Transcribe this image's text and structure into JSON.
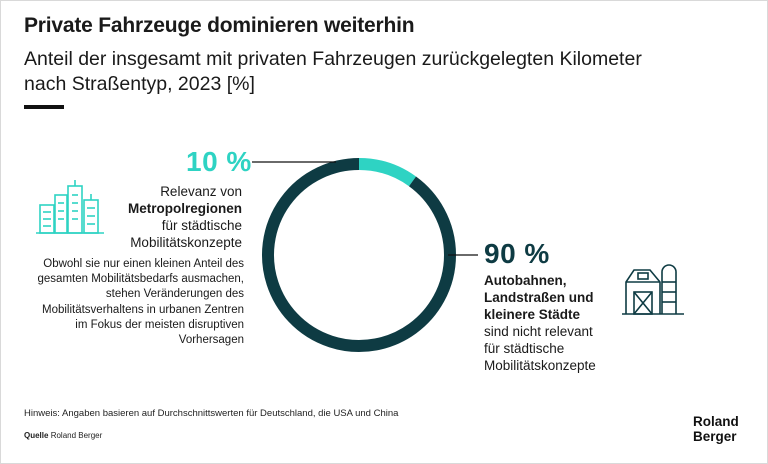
{
  "header": {
    "title": "Private Fahrzeuge dominieren weiterhin",
    "subtitle_line1": "Anteil der insgesamt mit privaten Fahrzeugen zurückgelegten Kilometer",
    "subtitle_line2": "nach Straßentyp, 2023 [%]"
  },
  "chart_data": {
    "type": "pie",
    "title": "Private Fahrzeuge dominieren weiterhin",
    "subtitle": "Anteil der insgesamt mit privaten Fahrzeugen zurückgelegten Kilometer nach Straßentyp, 2023 [%]",
    "donut": true,
    "categories": [
      "Metropolregionen",
      "Autobahnen, Landstraßen und kleinere Städte"
    ],
    "values": [
      10,
      90
    ],
    "colors": [
      "#2ed3c3",
      "#0e3b43"
    ]
  },
  "annotations": {
    "left": {
      "value_label": "10 %",
      "line1": "Relevanz von",
      "bold": "Metropolregionen",
      "line3": "für städtische",
      "line4": "Mobilitätskonzepte",
      "description": "Obwohl sie nur einen kleinen Anteil des gesamten Mobilitätsbedarfs ausmachen, stehen Veränderungen des Mobilitätsverhaltens in urbanen Zentren im Fokus der meisten disruptiven Vorhersagen",
      "icon": "city-skyline-icon"
    },
    "right": {
      "value_label": "90 %",
      "bold_line1": "Autobahnen,",
      "bold_line2": "Landstraßen und",
      "bold_line3": "kleinere Städte",
      "line4": "sind nicht relevant",
      "line5": "für städtische",
      "line6": "Mobilitätskonzepte",
      "icon": "farm-barn-icon"
    }
  },
  "footer": {
    "note": "Hinweis: Angaben basieren auf Durchschnittswerten für Deutschland, die USA und China",
    "source_label": "Quelle",
    "source_value": "Roland Berger",
    "brand_line1": "Roland",
    "brand_line2": "Berger"
  },
  "colors": {
    "accent": "#2ed3c3",
    "dark": "#0e3b43"
  }
}
